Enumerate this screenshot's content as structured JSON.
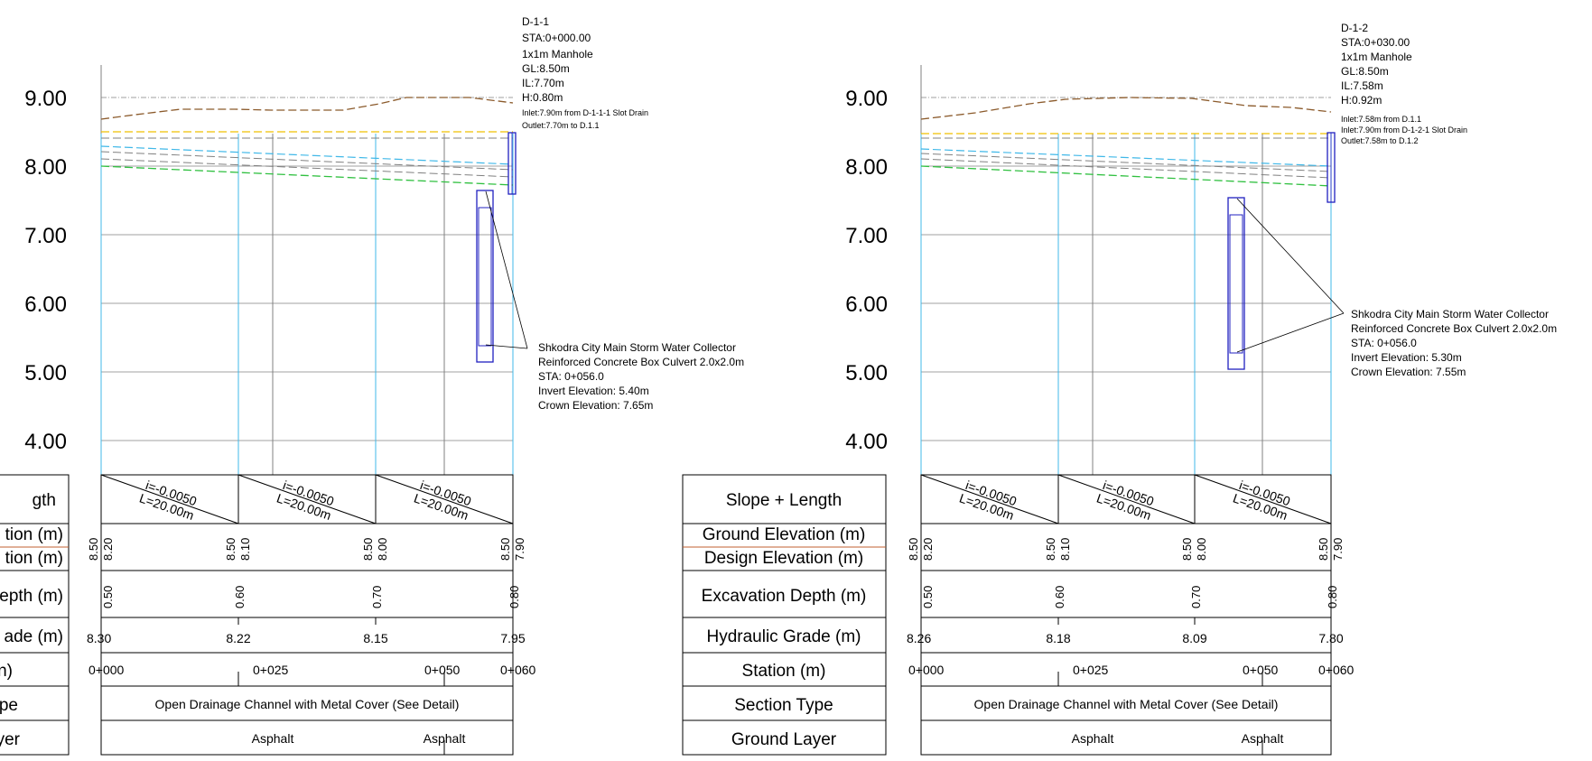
{
  "y_axis": {
    "ticks": [
      "9.00",
      "8.00",
      "7.00",
      "6.00",
      "5.00",
      "4.00"
    ],
    "values": [
      9,
      8,
      7,
      6,
      5,
      4
    ]
  },
  "row_labels": {
    "slope": "Slope + Length",
    "ground": "Ground Elevation (m)",
    "design": "Design Elevation (m)",
    "excavation": "Excavation Depth (m)",
    "hydraulic": "Hydraulic Grade (m)",
    "station": "Station (m)",
    "section": "Section Type",
    "layer": "Ground Layer"
  },
  "left_partial_labels": {
    "slope": "gth",
    "ground": "tion (m)",
    "design": "tion (m)",
    "excavation": "epth (m)",
    "hydraulic": "ade (m)",
    "station": "n)",
    "section": "pe",
    "layer": "yer"
  },
  "colors": {
    "ground_line": "#8b5a2b",
    "grid": "#808080",
    "cyan": "#40b8e8",
    "green": "#30c040",
    "yellow": "#f0c000",
    "blue_box": "#2020c0",
    "brown_rule": "#c06030"
  },
  "profiles": [
    {
      "manhole": {
        "id": "D-1-1",
        "sta": "STA:0+000.00",
        "type": "1x1m Manhole",
        "gl": "GL:8.50m",
        "il": "IL:7.70m",
        "h": "H:0.80m",
        "notes": [
          "Inlet:7.90m from D-1-1-1 Slot Drain",
          "Outlet:7.70m to D.1.1"
        ]
      },
      "collector": {
        "l1": "Shkodra City Main Storm Water Collector",
        "l2": "Reinforced Concrete Box Culvert 2.0x2.0m",
        "l3": "STA: 0+056.0",
        "l4": "Invert Elevation: 5.40m",
        "l5": "Crown Elevation: 7.65m",
        "invert": 5.4,
        "crown": 7.65
      },
      "slopes": [
        {
          "i": "i=-0.0050",
          "L": "L=20.00m"
        },
        {
          "i": "i=-0.0050",
          "L": "L=20.00m"
        },
        {
          "i": "i=-0.0050",
          "L": "L=20.00m"
        }
      ],
      "ground_elev": [
        "8.50",
        "8.50",
        "8.50",
        "8.50"
      ],
      "design_elev": [
        "8.20",
        "8.10",
        "8.00",
        "7.90"
      ],
      "excavation": [
        "0.50",
        "0.60",
        "0.70",
        "0.80"
      ],
      "hydraulic": [
        "8.30",
        "8.22",
        "8.15",
        "7.95"
      ],
      "stations": [
        "0+000",
        "0+025",
        "0+050",
        "0+060"
      ],
      "section_type": "Open Drainage Channel with Metal Cover (See Detail)",
      "layers": [
        "Asphalt",
        "Asphalt"
      ]
    },
    {
      "manhole": {
        "id": "D-1-2",
        "sta": "STA:0+030.00",
        "type": "1x1m Manhole",
        "gl": "GL:8.50m",
        "il": "IL:7.58m",
        "h": "H:0.92m",
        "notes": [
          "Inlet:7.58m from D.1.1",
          "Inlet:7.90m from D-1-2-1 Slot Drain",
          "Outlet:7.58m to D.1.2"
        ]
      },
      "collector": {
        "l1": "Shkodra City Main Storm Water Collector",
        "l2": "Reinforced Concrete Box Culvert 2.0x2.0m",
        "l3": "STA: 0+056.0",
        "l4": "Invert Elevation: 5.30m",
        "l5": "Crown Elevation: 7.55m",
        "invert": 5.3,
        "crown": 7.55
      },
      "slopes": [
        {
          "i": "i=-0.0050",
          "L": "L=20.00m"
        },
        {
          "i": "i=-0.0050",
          "L": "L=20.00m"
        },
        {
          "i": "i=-0.0050",
          "L": "L=20.00m"
        }
      ],
      "ground_elev": [
        "8.50",
        "8.50",
        "8.50",
        "8.50"
      ],
      "design_elev": [
        "8.20",
        "8.10",
        "8.00",
        "7.90"
      ],
      "excavation": [
        "0.50",
        "0.60",
        "0.70",
        "0.80"
      ],
      "hydraulic": [
        "8.26",
        "8.18",
        "8.09",
        "7.80"
      ],
      "stations": [
        "0+000",
        "0+025",
        "0+050",
        "0+060"
      ],
      "section_type": "Open Drainage Channel with Metal Cover (See Detail)",
      "layers": [
        "Asphalt",
        "Asphalt"
      ]
    }
  ]
}
